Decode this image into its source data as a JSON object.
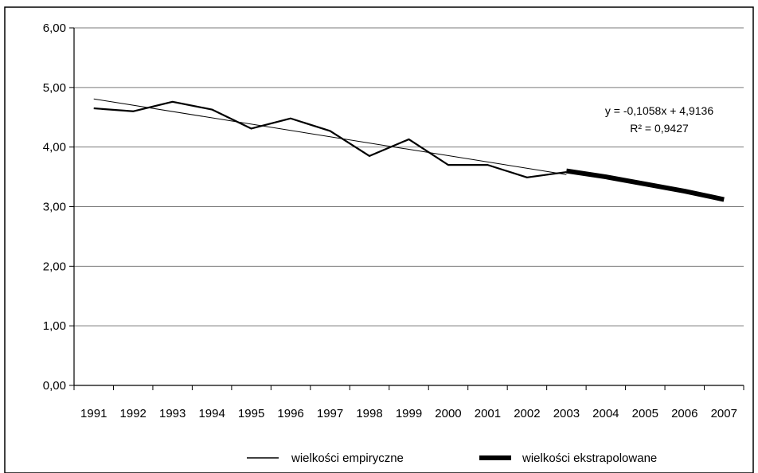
{
  "chart_data": {
    "type": "line",
    "categories": [
      "1991",
      "1992",
      "1993",
      "1994",
      "1995",
      "1996",
      "1997",
      "1998",
      "1999",
      "2000",
      "2001",
      "2002",
      "2003",
      "2004",
      "2005",
      "2006",
      "2007"
    ],
    "ylim": [
      0,
      6
    ],
    "y_ticks": [
      "0,00",
      "1,00",
      "2,00",
      "3,00",
      "4,00",
      "5,00",
      "6,00"
    ],
    "grid": "horizontal",
    "series": [
      {
        "name": "wielkości empiryczne",
        "values": [
          4.65,
          4.6,
          4.76,
          4.63,
          4.31,
          4.48,
          4.27,
          3.85,
          4.13,
          3.7,
          3.7,
          3.49,
          3.58,
          null,
          null,
          null,
          null
        ],
        "color": "#000000"
      },
      {
        "name": "wielkości ekstrapolowane",
        "values": [
          null,
          null,
          null,
          null,
          null,
          null,
          null,
          null,
          null,
          null,
          null,
          null,
          3.6,
          3.5,
          3.38,
          3.26,
          3.12
        ],
        "color": "#000000"
      }
    ],
    "trendline": {
      "slope": -0.1058,
      "intercept": 4.9136,
      "equation": "y = -0,1058x + 4,9136",
      "r2": "R² = 0,9427"
    },
    "legend_position": "bottom"
  }
}
